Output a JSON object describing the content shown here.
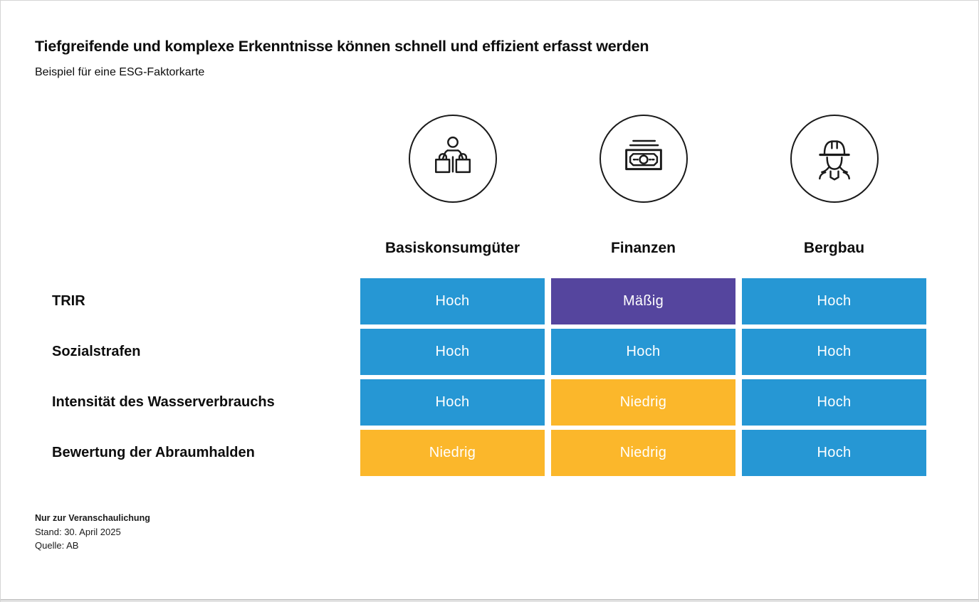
{
  "header": {
    "title": "Tiefgreifende und komplexe Erkenntnisse können schnell und effizient erfasst werden",
    "subtitle": "Beispiel für eine ESG-Faktorkarte"
  },
  "matrix": {
    "columns": [
      {
        "label": "Basiskonsumgüter",
        "icon": "shopper-icon"
      },
      {
        "label": "Finanzen",
        "icon": "banknote-icon"
      },
      {
        "label": "Bergbau",
        "icon": "miner-icon"
      }
    ],
    "rows": [
      {
        "label": "TRIR",
        "cells": [
          {
            "value": "Hoch",
            "level": "high"
          },
          {
            "value": "Mäßig",
            "level": "moderate"
          },
          {
            "value": "Hoch",
            "level": "high"
          }
        ]
      },
      {
        "label": "Sozialstrafen",
        "cells": [
          {
            "value": "Hoch",
            "level": "high"
          },
          {
            "value": "Hoch",
            "level": "high"
          },
          {
            "value": "Hoch",
            "level": "high"
          }
        ]
      },
      {
        "label": "Intensität des Wasserverbrauchs",
        "cells": [
          {
            "value": "Hoch",
            "level": "high"
          },
          {
            "value": "Niedrig",
            "level": "low"
          },
          {
            "value": "Hoch",
            "level": "high"
          }
        ]
      },
      {
        "label": "Bewertung der Abraumhalden",
        "cells": [
          {
            "value": "Niedrig",
            "level": "low"
          },
          {
            "value": "Niedrig",
            "level": "low"
          },
          {
            "value": "Hoch",
            "level": "high"
          }
        ]
      }
    ],
    "level_colors": {
      "high": "#2697D4",
      "moderate": "#55459E",
      "low": "#FBB72B"
    }
  },
  "footer": {
    "disclaimer": "Nur zur Veranschaulichung",
    "as_of": "Stand: 30. April 2025",
    "source": "Quelle: AB"
  },
  "chart_data": {
    "type": "heatmap",
    "title": "Tiefgreifende und komplexe Erkenntnisse können schnell und effizient erfasst werden",
    "subtitle": "Beispiel für eine ESG-Faktorkarte",
    "columns": [
      "Basiskonsumgüter",
      "Finanzen",
      "Bergbau"
    ],
    "rows": [
      "TRIR",
      "Sozialstrafen",
      "Intensität des Wasserverbrauchs",
      "Bewertung der Abraumhalden"
    ],
    "values": [
      [
        "Hoch",
        "Mäßig",
        "Hoch"
      ],
      [
        "Hoch",
        "Hoch",
        "Hoch"
      ],
      [
        "Hoch",
        "Niedrig",
        "Hoch"
      ],
      [
        "Niedrig",
        "Niedrig",
        "Hoch"
      ]
    ],
    "value_colors": {
      "Hoch": "#2697D4",
      "Mäßig": "#55459E",
      "Niedrig": "#FBB72B"
    },
    "legend_position": "none",
    "grid": false
  }
}
